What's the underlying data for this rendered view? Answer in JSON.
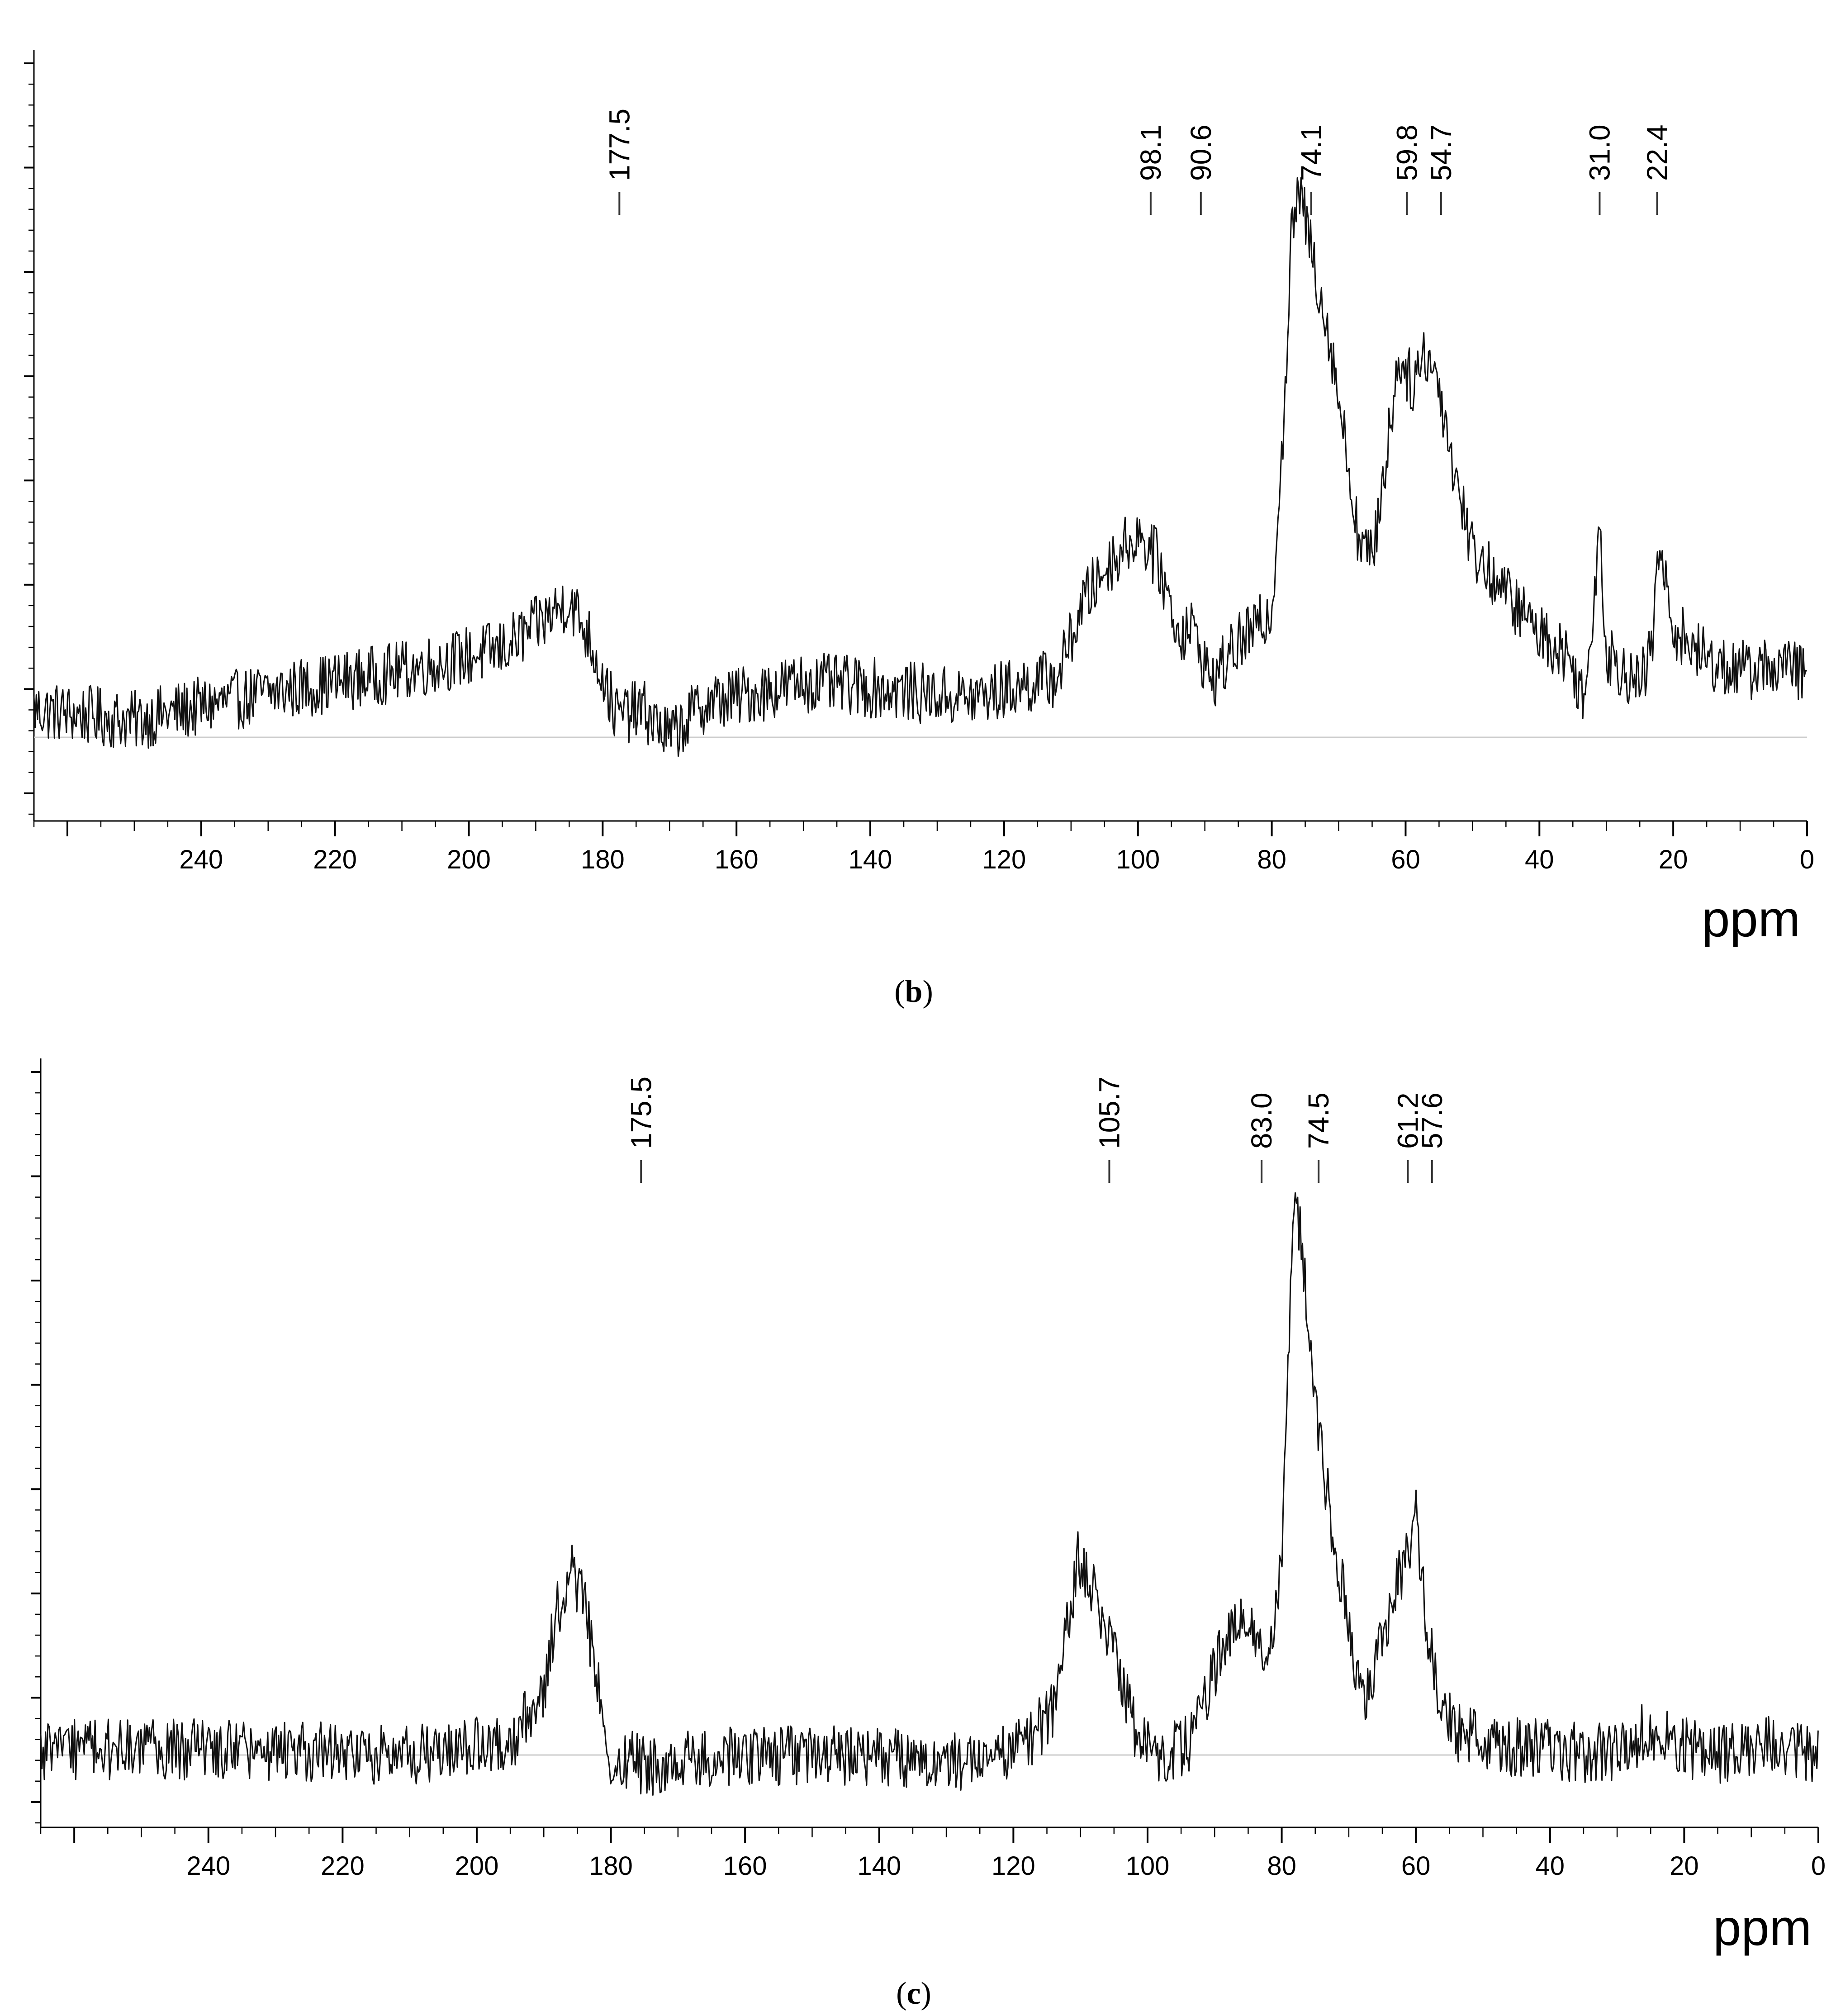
{
  "chart_data": [
    {
      "type": "line",
      "panel_label": "b",
      "xlabel": "ppm",
      "ylabel": "",
      "x_reversed": true,
      "xlim": [
        265,
        0
      ],
      "x_ticks": [
        240,
        220,
        200,
        180,
        160,
        140,
        120,
        100,
        80,
        60,
        40,
        20,
        0
      ],
      "ylim": [
        -0.15,
        1.35
      ],
      "grid": false,
      "baseline_visible": true,
      "series": [
        {
          "points": [
            [
              265,
              0.05
            ],
            [
              250,
              0.03
            ],
            [
              230,
              0.08
            ],
            [
              210,
              0.12
            ],
            [
              195,
              0.16
            ],
            [
              190,
              0.2
            ],
            [
              185,
              0.25
            ],
            [
              182,
              0.18
            ],
            [
              178,
              0.04
            ],
            [
              174,
              0.05
            ],
            [
              170,
              0.0
            ],
            [
              165,
              0.06
            ],
            [
              150,
              0.1
            ],
            [
              140,
              0.09
            ],
            [
              125,
              0.07
            ],
            [
              112,
              0.11
            ],
            [
              108,
              0.25
            ],
            [
              104,
              0.32
            ],
            [
              100,
              0.37
            ],
            [
              97,
              0.32
            ],
            [
              94,
              0.19
            ],
            [
              92,
              0.2
            ],
            [
              89,
              0.1
            ],
            [
              85,
              0.17
            ],
            [
              82,
              0.2
            ],
            [
              80,
              0.23
            ],
            [
              78,
              0.62
            ],
            [
              77,
              0.92
            ],
            [
              76,
              0.99
            ],
            [
              75,
              0.94
            ],
            [
              73,
              0.82
            ],
            [
              71,
              0.7
            ],
            [
              69,
              0.53
            ],
            [
              67,
              0.36
            ],
            [
              65,
              0.32
            ],
            [
              63,
              0.5
            ],
            [
              61,
              0.69
            ],
            [
              59,
              0.64
            ],
            [
              57,
              0.7
            ],
            [
              55,
              0.64
            ],
            [
              53,
              0.5
            ],
            [
              50,
              0.34
            ],
            [
              45,
              0.26
            ],
            [
              40,
              0.19
            ],
            [
              36,
              0.15
            ],
            [
              33,
              0.07
            ],
            [
              31.0,
              0.4
            ],
            [
              30,
              0.15
            ],
            [
              28,
              0.13
            ],
            [
              25,
              0.09
            ],
            [
              23,
              0.17
            ],
            [
              22.4,
              0.35
            ],
            [
              20,
              0.2
            ],
            [
              15,
              0.14
            ],
            [
              10,
              0.12
            ],
            [
              5,
              0.13
            ],
            [
              0,
              0.12
            ]
          ]
        }
      ],
      "peak_labels": [
        {
          "x": 177.5,
          "label": "177.5"
        },
        {
          "x": 98.1,
          "label": "98.1"
        },
        {
          "x": 90.6,
          "label": "90.6"
        },
        {
          "x": 74.1,
          "label": "74.1"
        },
        {
          "x": 59.8,
          "label": "59.8"
        },
        {
          "x": 54.7,
          "label": "54.7"
        },
        {
          "x": 31.0,
          "label": "31.0"
        },
        {
          "x": 22.4,
          "label": "22.4"
        }
      ]
    },
    {
      "type": "line",
      "panel_label": "c",
      "xlabel": "ppm",
      "ylabel": "",
      "x_reversed": true,
      "xlim": [
        265,
        0
      ],
      "x_ticks": [
        240,
        220,
        200,
        180,
        160,
        140,
        120,
        100,
        80,
        60,
        40,
        20,
        0
      ],
      "ylim": [
        -0.12,
        1.18
      ],
      "grid": false,
      "baseline_visible": true,
      "series": [
        {
          "points": [
            [
              265,
              0.01
            ],
            [
              240,
              0.01
            ],
            [
              210,
              0.0
            ],
            [
              195,
              0.02
            ],
            [
              190,
              0.12
            ],
            [
              188,
              0.26
            ],
            [
              186,
              0.33
            ],
            [
              184,
              0.28
            ],
            [
              182,
              0.12
            ],
            [
              180,
              0.0
            ],
            [
              175,
              -0.02
            ],
            [
              160,
              0.0
            ],
            [
              140,
              0.0
            ],
            [
              125,
              -0.01
            ],
            [
              118,
              0.02
            ],
            [
              114,
              0.08
            ],
            [
              112,
              0.22
            ],
            [
              110.5,
              0.35
            ],
            [
              108,
              0.29
            ],
            [
              105,
              0.18
            ],
            [
              102,
              0.05
            ],
            [
              98,
              0.0
            ],
            [
              94,
              0.02
            ],
            [
              91,
              0.12
            ],
            [
              88,
              0.22
            ],
            [
              86,
              0.24
            ],
            [
              84,
              0.2
            ],
            [
              82,
              0.17
            ],
            [
              80,
              0.35
            ],
            [
              79,
              0.75
            ],
            [
              78,
              1.0
            ],
            [
              77,
              0.92
            ],
            [
              75,
              0.62
            ],
            [
              73,
              0.45
            ],
            [
              71,
              0.3
            ],
            [
              69,
              0.15
            ],
            [
              67,
              0.1
            ],
            [
              65,
              0.22
            ],
            [
              63,
              0.3
            ],
            [
              61,
              0.36
            ],
            [
              60,
              0.45
            ],
            [
              59,
              0.3
            ],
            [
              57,
              0.12
            ],
            [
              54,
              0.04
            ],
            [
              50,
              0.02
            ],
            [
              40,
              0.01
            ],
            [
              30,
              0.0
            ],
            [
              25,
              0.05
            ],
            [
              22,
              0.02
            ],
            [
              15,
              0.0
            ],
            [
              5,
              0.02
            ],
            [
              0,
              0.0
            ]
          ]
        }
      ],
      "peak_labels": [
        {
          "x": 175.5,
          "label": "175.5"
        },
        {
          "x": 105.7,
          "label": "105.7"
        },
        {
          "x": 83.0,
          "label": "83.0"
        },
        {
          "x": 74.5,
          "label": "74.5"
        },
        {
          "x": 61.2,
          "label": "61.2"
        },
        {
          "x": 57.6,
          "label": "57.6"
        }
      ]
    }
  ]
}
